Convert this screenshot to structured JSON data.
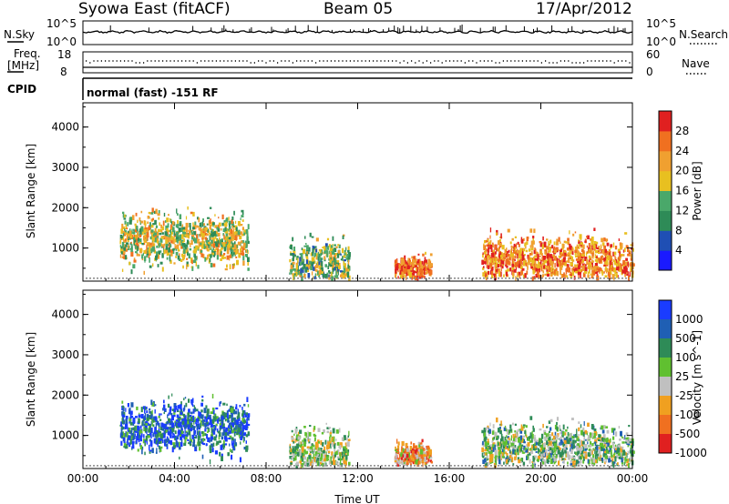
{
  "header": {
    "title": "Syowa East (fitACF)",
    "beam": "Beam 05",
    "date": "17/Apr/2012"
  },
  "strip": {
    "nsky_label": "N.Sky",
    "nsearch_label": "N.Search",
    "nsky_ticks": [
      "10^5",
      "10^0"
    ],
    "nsearch_ticks": [
      "10^5",
      "10^0"
    ],
    "freq_label_line1": "Freq.",
    "freq_label_line2": "[MHz]",
    "freq_ticks": [
      "18",
      "8"
    ],
    "nave_label": "Nave",
    "nave_ticks": [
      "60",
      "0"
    ],
    "cpid_label": "CPID",
    "cpid_text": "normal (fast) -151 RF"
  },
  "chart_data": [
    {
      "type": "heatmap",
      "name_on_chart": "Power",
      "ylabel": "Slant Range [km]",
      "yticks": [
        1000,
        2000,
        3000,
        4000
      ],
      "ylim": [
        180,
        4600
      ],
      "xlim_hours": [
        0,
        24
      ],
      "xticks": [
        "00:00",
        "04:00",
        "08:00",
        "12:00",
        "16:00",
        "20:00",
        "00:00"
      ],
      "colorbar": {
        "label": "Power [dB]",
        "ticks": [
          "4",
          "8",
          "12",
          "16",
          "20",
          "24",
          "28"
        ],
        "colors": [
          "#1a1aff",
          "#1f4fb4",
          "#2e8b57",
          "#4aa86a",
          "#e8c020",
          "#f0a030",
          "#f07020",
          "#e02020"
        ]
      },
      "scatter_regions": [
        {
          "t0": 1.6,
          "t1": 7.2,
          "r0": 300,
          "r1": 2300,
          "core_r": 1250,
          "level": 0.55
        },
        {
          "t0": 9.0,
          "t1": 11.6,
          "r0": 300,
          "r1": 2300,
          "core_r": 600,
          "level": 0.45
        },
        {
          "t0": 13.6,
          "t1": 15.2,
          "r0": 300,
          "r1": 1200,
          "core_r": 550,
          "level": 0.85
        },
        {
          "t0": 17.4,
          "t1": 24.0,
          "r0": 300,
          "r1": 2300,
          "core_r": 700,
          "level": 0.75
        }
      ]
    },
    {
      "type": "heatmap",
      "name_on_chart": "Velocity",
      "ylabel": "Slant Range [km]",
      "xlabel": "Time UT",
      "yticks": [
        1000,
        2000,
        3000,
        4000
      ],
      "ylim": [
        180,
        4600
      ],
      "xlim_hours": [
        0,
        24
      ],
      "xticks": [
        "00:00",
        "04:00",
        "08:00",
        "12:00",
        "16:00",
        "20:00",
        "00:00"
      ],
      "colorbar": {
        "label": "Velocity [m s^-1]",
        "ticks": [
          "1000",
          "500",
          "100",
          "25",
          "-25",
          "-100",
          "-500",
          "-1000"
        ],
        "colors": [
          "#1a3cff",
          "#1f5fb4",
          "#2e8b57",
          "#60c030",
          "#c0c0c0",
          "#f0a020",
          "#f07020",
          "#e02020"
        ]
      },
      "scatter_regions": [
        {
          "t0": 1.6,
          "t1": 7.2,
          "r0": 300,
          "r1": 2300,
          "core_r": 1250,
          "level": 0.2
        },
        {
          "t0": 9.0,
          "t1": 11.6,
          "r0": 300,
          "r1": 2300,
          "core_r": 600,
          "level": 0.5
        },
        {
          "t0": 13.6,
          "t1": 15.2,
          "r0": 300,
          "r1": 1200,
          "core_r": 550,
          "level": 0.7
        },
        {
          "t0": 17.4,
          "t1": 24.0,
          "r0": 300,
          "r1": 2300,
          "core_r": 700,
          "level": 0.45
        }
      ]
    }
  ]
}
